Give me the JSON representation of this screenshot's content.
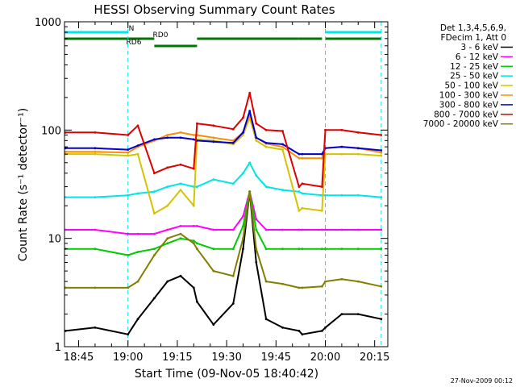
{
  "chart_data": {
    "type": "line",
    "title": "HESSI Observing Summary Count Rates",
    "xlabel": "Start Time (09-Nov-05 18:40:42)",
    "ylabel": "Count Rate (s⁻¹ detector⁻¹)",
    "xlim": [
      "18:40:42",
      "20:19"
    ],
    "ylim": [
      1,
      1000
    ],
    "yscale": "log",
    "x_ticks": [
      "18:45",
      "19:00",
      "19:15",
      "19:30",
      "19:45",
      "20:00",
      "20:15"
    ],
    "y_ticks": [
      "1",
      "10",
      "100",
      "1000"
    ],
    "legend": {
      "placement": "outside-right",
      "header": [
        "Det 1,3,4,5,6,9,",
        "FDecim 1, Att 0"
      ],
      "entries": [
        {
          "name": "3 - 6 keV",
          "color": "#000000"
        },
        {
          "name": "6 - 12 keV",
          "color": "#ff00ff"
        },
        {
          "name": "12 - 25 keV",
          "color": "#00cc00"
        },
        {
          "name": "25 - 50 keV",
          "color": "#00e5e5"
        },
        {
          "name": "50 - 100 keV",
          "color": "#d4c400"
        },
        {
          "name": "100 - 300 keV",
          "color": "#ff8c00"
        },
        {
          "name": "300 - 800 keV",
          "color": "#0000cc"
        },
        {
          "name": "800 - 7000 keV",
          "color": "#dd0000"
        },
        {
          "name": "7000 - 20000 keV",
          "color": "#808000"
        }
      ]
    },
    "flags": [
      {
        "label": "N",
        "color": "#00e5e5",
        "segments": [
          [
            "18:40:42",
            "19:00"
          ],
          [
            "20:00",
            "20:17"
          ]
        ]
      },
      {
        "label": "RD0",
        "color": "#007700",
        "segments": [
          [
            "18:40:42",
            "19:08"
          ],
          [
            "19:21",
            "19:52"
          ],
          [
            "19:52",
            "19:59"
          ],
          [
            "20:00",
            "20:17"
          ]
        ]
      },
      {
        "label": "RD6",
        "color": "#007700",
        "segments": [
          [
            "19:08",
            "19:21"
          ]
        ]
      }
    ],
    "vertical_markers": [
      {
        "x": "18:40:42",
        "style": "solid",
        "color": "#00e5e5"
      },
      {
        "x": "19:00",
        "style": "dashed",
        "color": "#00e5e5"
      },
      {
        "x": "20:00",
        "style": "dashed",
        "color": "#00e5e5"
      },
      {
        "x": "20:17",
        "style": "dashed",
        "color": "#00e5e5"
      }
    ],
    "x": [
      "18:41",
      "18:50",
      "19:00",
      "19:03",
      "19:08",
      "19:12",
      "19:16",
      "19:20",
      "19:21",
      "19:26",
      "19:32",
      "19:35",
      "19:37",
      "19:39",
      "19:42",
      "19:47",
      "19:52",
      "19:53",
      "19:59",
      "20:00",
      "20:05",
      "20:10",
      "20:17"
    ],
    "series": [
      {
        "name": "3 - 6 keV",
        "color": "#000000",
        "values": [
          1.4,
          1.5,
          1.3,
          1.8,
          2.8,
          4.0,
          4.5,
          3.5,
          2.6,
          1.6,
          2.5,
          8.0,
          27,
          6.0,
          1.8,
          1.5,
          1.4,
          1.3,
          1.4,
          1.5,
          2.0,
          2.0,
          1.8
        ]
      },
      {
        "name": "6 - 12 keV",
        "color": "#ff00ff",
        "values": [
          12,
          12,
          11,
          11,
          11,
          12,
          13,
          13,
          13,
          12,
          12,
          16,
          27,
          15,
          12,
          12,
          12,
          12,
          12,
          12,
          12,
          12,
          12
        ]
      },
      {
        "name": "12 - 25 keV",
        "color": "#00cc00",
        "values": [
          8,
          8,
          7,
          7.5,
          8,
          9,
          10,
          9.5,
          9,
          8,
          8,
          13,
          27,
          12,
          8,
          8,
          8,
          8,
          8,
          8,
          8,
          8,
          8
        ]
      },
      {
        "name": "25 - 50 keV",
        "color": "#00e5e5",
        "values": [
          24,
          24,
          25,
          26,
          27,
          30,
          32,
          30,
          30,
          35,
          32,
          40,
          50,
          38,
          30,
          28,
          27,
          26,
          25,
          25,
          25,
          25,
          24
        ]
      },
      {
        "name": "50 - 100 keV",
        "color": "#d4c400",
        "values": [
          60,
          60,
          58,
          60,
          17,
          20,
          28,
          20,
          82,
          80,
          74,
          90,
          130,
          80,
          70,
          66,
          18,
          19,
          18,
          60,
          60,
          60,
          58
        ]
      },
      {
        "name": "100 - 300 keV",
        "color": "#ff8c00",
        "values": [
          63,
          63,
          62,
          70,
          80,
          90,
          95,
          90,
          90,
          85,
          80,
          95,
          140,
          85,
          75,
          70,
          55,
          55,
          55,
          68,
          70,
          68,
          62
        ]
      },
      {
        "name": "300 - 800 keV",
        "color": "#0000cc",
        "values": [
          68,
          68,
          66,
          72,
          82,
          85,
          85,
          82,
          80,
          78,
          76,
          95,
          150,
          85,
          76,
          74,
          60,
          60,
          60,
          68,
          70,
          68,
          65
        ]
      },
      {
        "name": "800 - 7000 keV",
        "color": "#dd0000",
        "values": [
          95,
          95,
          90,
          110,
          40,
          45,
          48,
          44,
          115,
          110,
          102,
          130,
          220,
          115,
          100,
          98,
          30,
          32,
          30,
          100,
          100,
          95,
          90
        ]
      },
      {
        "name": "7000 - 20000 keV",
        "color": "#808000",
        "values": [
          3.5,
          3.5,
          3.5,
          4.0,
          7.0,
          10.0,
          11.0,
          9.0,
          8.0,
          5.0,
          4.5,
          10.0,
          27,
          8.0,
          4.0,
          3.8,
          3.5,
          3.5,
          3.6,
          4.0,
          4.2,
          4.0,
          3.6
        ]
      }
    ],
    "footer_date": "27-Nov-2009 00:12",
    "grid": false
  }
}
